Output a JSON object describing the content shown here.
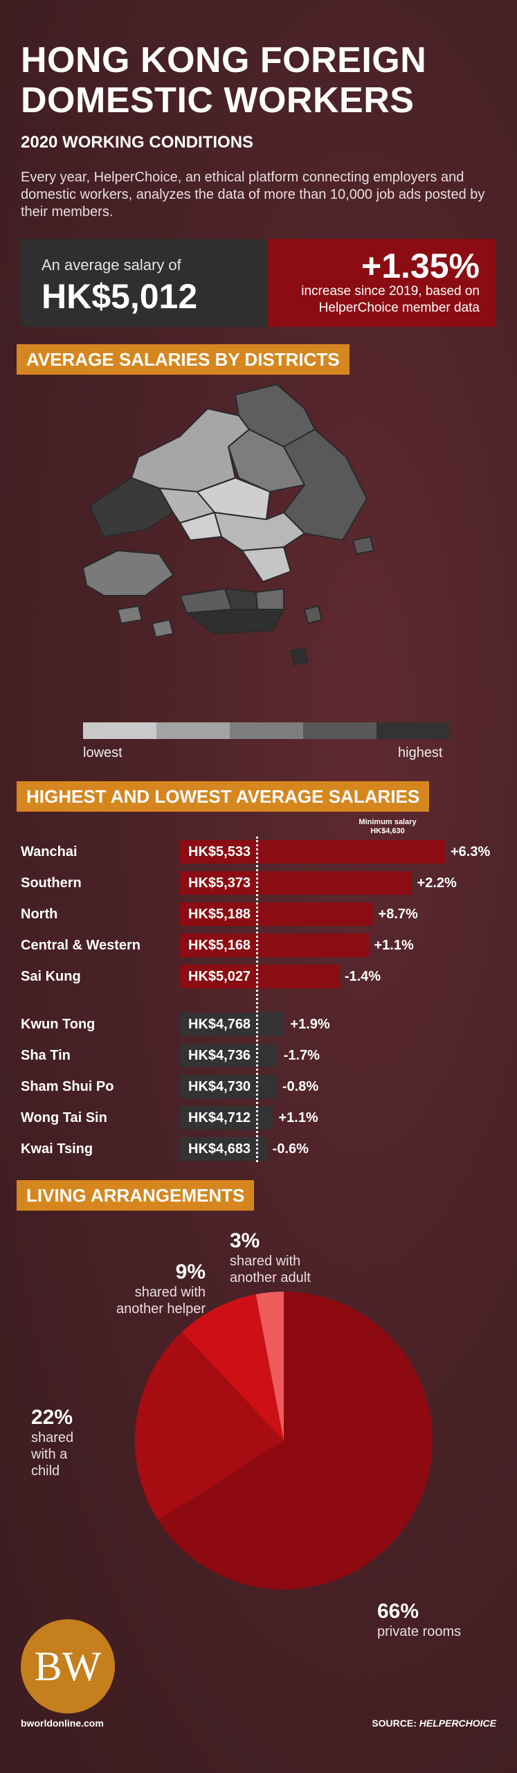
{
  "header": {
    "title": "HONG KONG FOREIGN DOMESTIC WORKERS",
    "subtitle": "2020 WORKING CONDITIONS",
    "intro": "Every year, HelperChoice, an ethical platform connecting employers and domestic workers, analyzes the data of more than 10,000 job ads posted by their members."
  },
  "stats": {
    "salary_label": "An average salary of",
    "salary_value": "HK$5,012",
    "increase_value": "+1.35%",
    "increase_note": "increase since 2019, based on HelperChoice member data"
  },
  "sections": {
    "districts": "AVERAGE SALARIES BY DISTRICTS",
    "highest_lowest": "HIGHEST AND LOWEST AVERAGE SALARIES",
    "living": "LIVING ARRANGEMENTS"
  },
  "map_legend": {
    "low": "lowest",
    "high": "highest",
    "colors": [
      "#c9c9c9",
      "#a3a3a3",
      "#7e7e7e",
      "#585858",
      "#333333"
    ]
  },
  "chart_data": [
    {
      "type": "bar",
      "orientation": "horizontal",
      "title": "HIGHEST AND LOWEST AVERAGE SALARIES",
      "reference_line": {
        "label": "Minimum salary",
        "value_label": "HK$4,630",
        "value": 4630
      },
      "categories": [
        "Wanchai",
        "Southern",
        "North",
        "Central & Western",
        "Sai Kung",
        "Kwun Tong",
        "Sha Tin",
        "Sham Shui Po",
        "Wong Tai Sin",
        "Kwai Tsing"
      ],
      "values": [
        5533,
        5373,
        5188,
        5168,
        5027,
        4768,
        4736,
        4730,
        4712,
        4683
      ],
      "value_labels": [
        "HK$5,533",
        "HK$5,373",
        "HK$5,188",
        "HK$5,168",
        "HK$5,027",
        "HK$4,768",
        "HK$4,736",
        "HK$4,730",
        "HK$4,712",
        "HK$4,683"
      ],
      "changes": [
        "+6.3%",
        "+2.2%",
        "+8.7%",
        "+1.1%",
        "-1.4%",
        "+1.9%",
        "-1.7%",
        "-0.8%",
        "+1.1%",
        "-0.6%"
      ],
      "groups": [
        "highest",
        "highest",
        "highest",
        "highest",
        "highest",
        "lowest",
        "lowest",
        "lowest",
        "lowest",
        "lowest"
      ],
      "colors": {
        "highest": "#8b0c12",
        "lowest": "#333333"
      }
    },
    {
      "type": "pie",
      "title": "LIVING ARRANGEMENTS",
      "slices": [
        {
          "label": "private rooms",
          "value": 66,
          "pct_label": "66%",
          "color": "#8c0a10"
        },
        {
          "label": "shared with a child",
          "value": 22,
          "pct_label": "22%",
          "color": "#a70c12"
        },
        {
          "label": "shared with another helper",
          "value": 9,
          "pct_label": "9%",
          "color": "#cc1016"
        },
        {
          "label": "shared with another adult",
          "value": 3,
          "pct_label": "3%",
          "color": "#ee5c5c"
        }
      ]
    }
  ],
  "footer": {
    "logo": "BW",
    "site": "bworldonline.com",
    "source_prefix": "SOURCE:",
    "source": "HELPERCHOICE"
  }
}
